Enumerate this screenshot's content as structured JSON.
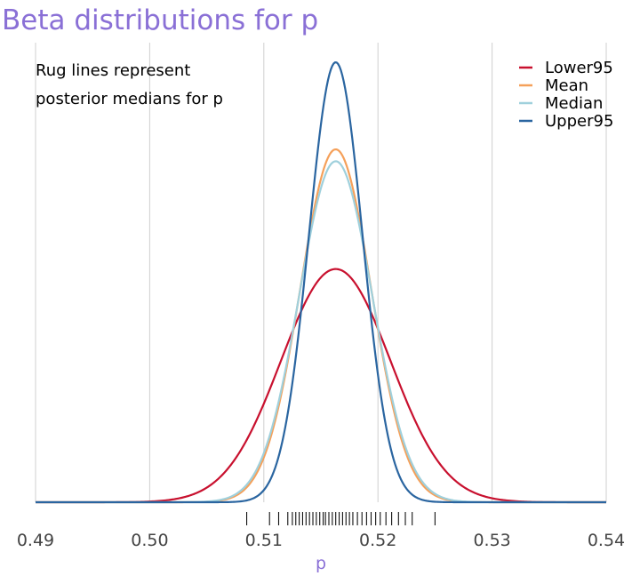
{
  "chart_data": {
    "type": "line",
    "title": "Beta distributions for p",
    "xlabel": "p",
    "ylabel": "",
    "xlim": [
      0.49,
      0.54
    ],
    "x_ticks": [
      "0.49",
      "0.50",
      "0.51",
      "0.52",
      "0.53",
      "0.54"
    ],
    "x_tick_values": [
      0.49,
      0.5,
      0.51,
      0.52,
      0.53,
      0.54
    ],
    "annotation": [
      "Rug lines represent",
      "posterior medians for p"
    ],
    "legend_position": "top-right",
    "grid": "vertical",
    "series": [
      {
        "name": "Lower95",
        "color": "#c8102e",
        "mean": 0.5163,
        "sd": 0.0048,
        "peak": 0.53
      },
      {
        "name": "Mean",
        "color": "#f5a05a",
        "mean": 0.5163,
        "sd": 0.0031,
        "peak": 0.802
      },
      {
        "name": "Median",
        "color": "#9fd0dc",
        "mean": 0.5163,
        "sd": 0.0032,
        "peak": 0.775
      },
      {
        "name": "Upper95",
        "color": "#2a65a0",
        "mean": 0.5163,
        "sd": 0.00235,
        "peak": 1.0
      }
    ],
    "rug": [
      0.5085,
      0.5105,
      0.5113,
      0.5121,
      0.5125,
      0.5128,
      0.5131,
      0.5134,
      0.5137,
      0.514,
      0.5143,
      0.5146,
      0.5149,
      0.5152,
      0.5154,
      0.5157,
      0.516,
      0.5163,
      0.5166,
      0.5169,
      0.5172,
      0.5175,
      0.5178,
      0.5182,
      0.5186,
      0.519,
      0.5194,
      0.5198,
      0.5202,
      0.5207,
      0.5212,
      0.5218,
      0.5224,
      0.523,
      0.525
    ]
  }
}
